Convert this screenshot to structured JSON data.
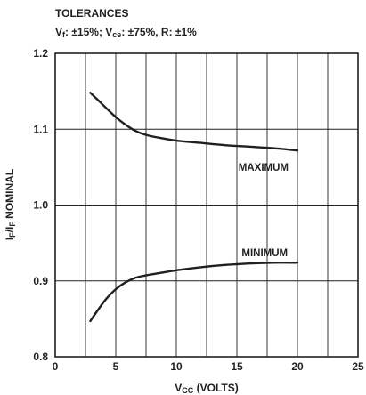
{
  "chart_data": {
    "type": "line",
    "title": "TOLERANCES",
    "subtitle": {
      "vf_label": "V",
      "vf_sub": "f",
      "vf_value": ": ±15%; ",
      "vce_label": "V",
      "vce_sub": "ce",
      "vce_value": ": ±75%, R: ±1%"
    },
    "xlabel": {
      "main": "V",
      "sub": "CC",
      "rest": " (VOLTS)"
    },
    "ylabel": {
      "a": "I",
      "a_sub": "F",
      "mid": "/I",
      "b_sub": "F",
      "rest": " NOMINAL"
    },
    "xlim": [
      0,
      25
    ],
    "ylim": [
      0.8,
      1.2
    ],
    "x_ticks": [
      0,
      5,
      10,
      15,
      20,
      25
    ],
    "x_tick_labels": [
      "0",
      "5",
      "10",
      "15",
      "20",
      "25"
    ],
    "y_ticks": [
      0.8,
      0.9,
      1.0,
      1.1,
      1.2
    ],
    "y_tick_labels": [
      "0.8",
      "0.9",
      "1.0",
      "1.1",
      "1.2"
    ],
    "grid_x": [
      2.5,
      5,
      7.5,
      10,
      12.5,
      15,
      17.5,
      20,
      22.5
    ],
    "grid_y": [
      0.9,
      1.0,
      1.1
    ],
    "grid": true,
    "series": [
      {
        "name": "MAXIMUM",
        "x": [
          2.9,
          3.5,
          4.2,
          5.0,
          5.8,
          6.6,
          7.4,
          8.5,
          10,
          12,
          14,
          16,
          18,
          20
        ],
        "y": [
          1.148,
          1.139,
          1.128,
          1.116,
          1.106,
          1.098,
          1.093,
          1.089,
          1.085,
          1.082,
          1.079,
          1.077,
          1.075,
          1.072
        ]
      },
      {
        "name": "MINIMUM",
        "x": [
          2.9,
          3.5,
          4.2,
          5.0,
          5.8,
          6.6,
          7.4,
          8.5,
          10,
          12,
          14,
          16,
          18,
          20
        ],
        "y": [
          0.847,
          0.861,
          0.876,
          0.889,
          0.898,
          0.904,
          0.907,
          0.91,
          0.914,
          0.918,
          0.921,
          0.923,
          0.924,
          0.924
        ]
      }
    ],
    "annotations": [
      {
        "text": "MAXIMUM",
        "x": 17.2,
        "y": 1.05
      },
      {
        "text": "MINIMUM",
        "x": 17.3,
        "y": 0.937
      }
    ]
  }
}
